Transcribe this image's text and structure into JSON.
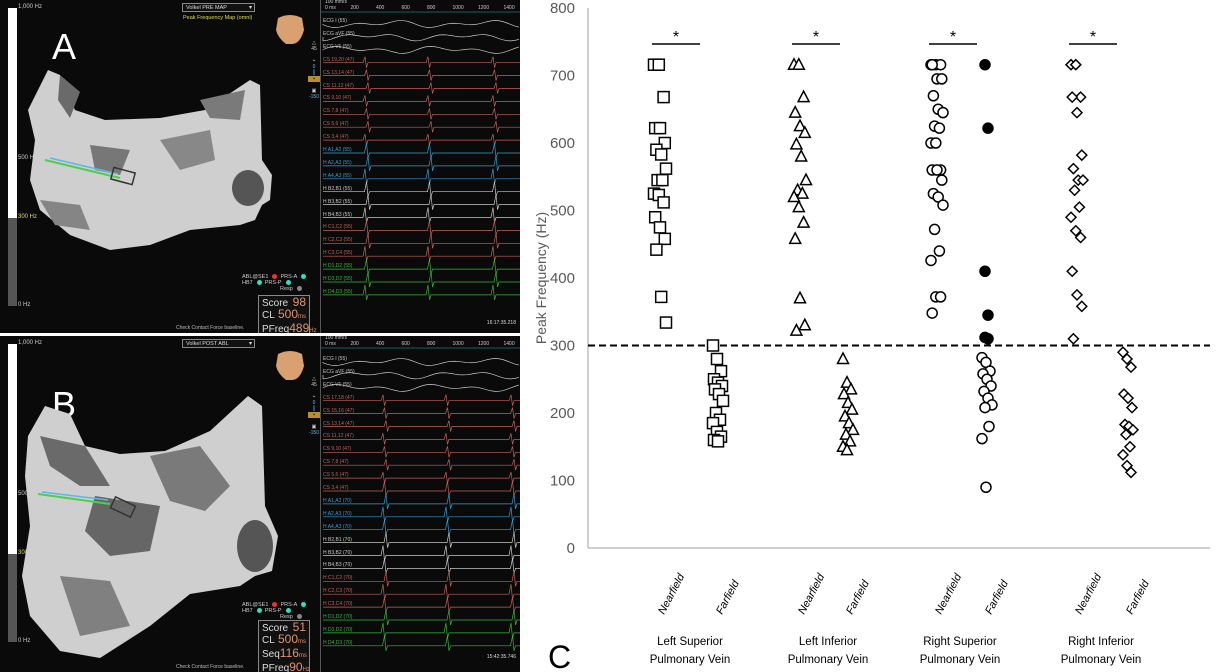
{
  "panelA": {
    "letter": "A",
    "map_select": "Volkel PRE MAP",
    "map_type": "Peak Frequency Map (omni)",
    "colorbar": {
      "top": "1,000 Hz",
      "mid": "500 Hz",
      "threshold": "300 Hz",
      "bottom": "0 Hz"
    },
    "toolbar": {
      "a": "45",
      "b": "0",
      "c": "-150"
    },
    "time_axis": {
      "speed": "100 mm/s",
      "ticks": [
        "0 ms",
        "200",
        "400",
        "600",
        "800",
        "1000",
        "1200",
        "1400"
      ]
    },
    "traces": [
      {
        "label": "ECG I (55)",
        "color": "#c8c8c8"
      },
      {
        "label": "ECG aVF (55)",
        "color": "#c8c8c8"
      },
      {
        "label": "ECG V1 (55)",
        "color": "#c8c8c8"
      },
      {
        "label": "CS 19,20 (47)",
        "color": "#c0635c"
      },
      {
        "label": "CS 13,14 (47)",
        "color": "#c0635c"
      },
      {
        "label": "CS 11,12 (47)",
        "color": "#c0635c"
      },
      {
        "label": "CS 9,10 (47)",
        "color": "#c0635c"
      },
      {
        "label": "CS 7,8 (47)",
        "color": "#c0635c"
      },
      {
        "label": "CS 5,6 (47)",
        "color": "#c0635c"
      },
      {
        "label": "CS 3,4 (47)",
        "color": "#c0635c"
      },
      {
        "label": "H A1,A2 (55)",
        "color": "#3a9ad0"
      },
      {
        "label": "H A2,A3 (55)",
        "color": "#3a9ad0"
      },
      {
        "label": "H A4,A3 (55)",
        "color": "#3a9ad0"
      },
      {
        "label": "H B2,B1 (55)",
        "color": "#c8c8c8"
      },
      {
        "label": "H B3,B2 (55)",
        "color": "#c8c8c8"
      },
      {
        "label": "H B4,B3 (55)",
        "color": "#c8c8c8"
      },
      {
        "label": "H C1,C2 (55)",
        "color": "#c0635c"
      },
      {
        "label": "H C2,C3 (55)",
        "color": "#c0635c"
      },
      {
        "label": "H C3,C4 (55)",
        "color": "#c0635c"
      },
      {
        "label": "H D1,D2 (55)",
        "color": "#3cb43c"
      },
      {
        "label": "H D3,D2 (55)",
        "color": "#3cb43c"
      },
      {
        "label": "H D4,D3 (55)",
        "color": "#3cb43c"
      }
    ],
    "legend": {
      "abl": "ABL@SE1",
      "hb": "HB7",
      "prs_a": "PRS-A",
      "prs_p": "PRS-P",
      "resp": "Resp"
    },
    "score": {
      "score_label": "Score",
      "score": "98",
      "cl_label": "CL",
      "cl": "500",
      "cl_unit": "ms",
      "pfreq_label": "PFreq",
      "pfreq": "489",
      "pfreq_unit": "Hz"
    },
    "footer": "Check Contact Force baseline.",
    "timestamp": "16:17:35.218"
  },
  "panelB": {
    "letter": "B",
    "map_select": "Volkel POST ABL",
    "colorbar": {
      "top": "1,000 Hz",
      "mid": "500 Hz",
      "threshold": "300 Hz",
      "bottom": "0 Hz"
    },
    "toolbar": {
      "a": "45",
      "b": "0",
      "c": "-150"
    },
    "time_axis": {
      "speed": "100 mm/s",
      "ticks": [
        "0 ms",
        "200",
        "400",
        "600",
        "800",
        "1000",
        "1200",
        "1400"
      ]
    },
    "traces": [
      {
        "label": "ECG I (55)",
        "color": "#c8c8c8"
      },
      {
        "label": "ECG aVF (55)",
        "color": "#c8c8c8"
      },
      {
        "label": "ECG V1 (55)",
        "color": "#c8c8c8"
      },
      {
        "label": "CS 17,18 (47)",
        "color": "#c0635c"
      },
      {
        "label": "CS 15,16 (47)",
        "color": "#c0635c"
      },
      {
        "label": "CS 13,14 (47)",
        "color": "#c0635c"
      },
      {
        "label": "CS 11,12 (47)",
        "color": "#c0635c"
      },
      {
        "label": "CS 9,10 (47)",
        "color": "#c0635c"
      },
      {
        "label": "CS 7,8 (47)",
        "color": "#c0635c"
      },
      {
        "label": "CS 5,6 (47)",
        "color": "#c0635c"
      },
      {
        "label": "CS 3,4 (47)",
        "color": "#c0635c"
      },
      {
        "label": "H A1,A2 (70)",
        "color": "#3a9ad0"
      },
      {
        "label": "H A2,A3 (70)",
        "color": "#3a9ad0"
      },
      {
        "label": "H A4,A3 (70)",
        "color": "#3a9ad0"
      },
      {
        "label": "H B2,B1 (70)",
        "color": "#c8c8c8"
      },
      {
        "label": "H B3,B2 (70)",
        "color": "#c8c8c8"
      },
      {
        "label": "H B4,B3 (70)",
        "color": "#c8c8c8"
      },
      {
        "label": "H C1,C2 (70)",
        "color": "#c0635c"
      },
      {
        "label": "H C2,C3 (70)",
        "color": "#c0635c"
      },
      {
        "label": "H C3,C4 (70)",
        "color": "#c0635c"
      },
      {
        "label": "H D1,D2 (70)",
        "color": "#3cb43c"
      },
      {
        "label": "H D3,D2 (70)",
        "color": "#3cb43c"
      },
      {
        "label": "H D4,D3 (70)",
        "color": "#3cb43c"
      }
    ],
    "legend": {
      "abl": "ABL@SE1",
      "hb": "HB7",
      "prs_a": "PRS-A",
      "prs_p": "PRS-P",
      "resp": "Resp"
    },
    "score": {
      "score_label": "Score",
      "score": "51",
      "cl_label": "CL",
      "cl": "500",
      "cl_unit": "ms",
      "seq_label": "Seq",
      "seq": "116",
      "seq_unit": "ms",
      "pfreq_label": "PFreq",
      "pfreq": "90",
      "pfreq_unit": "Hz"
    },
    "footer": "Check Contact Force baseline.",
    "timestamp": "15:42:35.746"
  },
  "panelC": {
    "letter": "C"
  },
  "chart_data": {
    "type": "scatter",
    "ylabel": "Peak Frequency (Hz)",
    "ylim": [
      0,
      800
    ],
    "yticks": [
      0,
      100,
      200,
      300,
      400,
      500,
      600,
      700,
      800
    ],
    "grid": false,
    "reference_line": {
      "y": 300,
      "style": "dashed"
    },
    "significance_label": "*",
    "groups": [
      {
        "name": "Left Superior Pulmonary Vein",
        "marker": "square",
        "series": [
          {
            "category": "Nearfield",
            "values": [
              716,
              716,
              668,
              622,
              622,
              600,
              590,
              583,
              562,
              545,
              545,
              525,
              523,
              512,
              490,
              475,
              458,
              442,
              372,
              334
            ]
          },
          {
            "category": "Farfield",
            "values": [
              300,
              280,
              262,
              250,
              245,
              240,
              235,
              228,
              218,
              200,
              190,
              185,
              172,
              165,
              160,
              158
            ]
          }
        ]
      },
      {
        "name": "Left Inferior Pulmonary Vein",
        "marker": "triangle",
        "series": [
          {
            "category": "Nearfield",
            "values": [
              716,
              716,
              668,
              645,
              625,
              615,
              598,
              580,
              545,
              530,
              525,
              520,
              505,
              482,
              458,
              370,
              330,
              322
            ]
          },
          {
            "category": "Farfield",
            "values": [
              280,
              245,
              235,
              228,
              215,
              205,
              195,
              185,
              175,
              168,
              158,
              150,
              145
            ]
          }
        ]
      },
      {
        "name": "Right Superior Pulmonary Vein",
        "marker": "circle",
        "series": [
          {
            "category": "Nearfield",
            "values": [
              716,
              716,
              716,
              716,
              695,
              695,
              670,
              650,
              645,
              625,
              622,
              600,
              600,
              560,
              560,
              560,
              545,
              525,
              520,
              508,
              472,
              440,
              426,
              372,
              372,
              348
            ]
          },
          {
            "category": "Farfield",
            "values": [
              282,
              275,
              262,
              258,
              250,
              240,
              232,
              222,
              212,
              208,
              180,
              162,
              90
            ],
            "filled_values": [
              716,
              622,
              410,
              345,
              312,
              310
            ]
          }
        ]
      },
      {
        "name": "Right Inferior Pulmonary Vein",
        "marker": "diamond",
        "series": [
          {
            "category": "Nearfield",
            "values": [
              716,
              716,
              668,
              668,
              645,
              582,
              562,
              545,
              545,
              530,
              505,
              490,
              470,
              460,
              410,
              375,
              358,
              310
            ]
          },
          {
            "category": "Farfield",
            "values": [
              290,
              280,
              268,
              228,
              222,
              208,
              183,
              180,
              175,
              168,
              150,
              138,
              122,
              112
            ]
          }
        ]
      }
    ]
  }
}
